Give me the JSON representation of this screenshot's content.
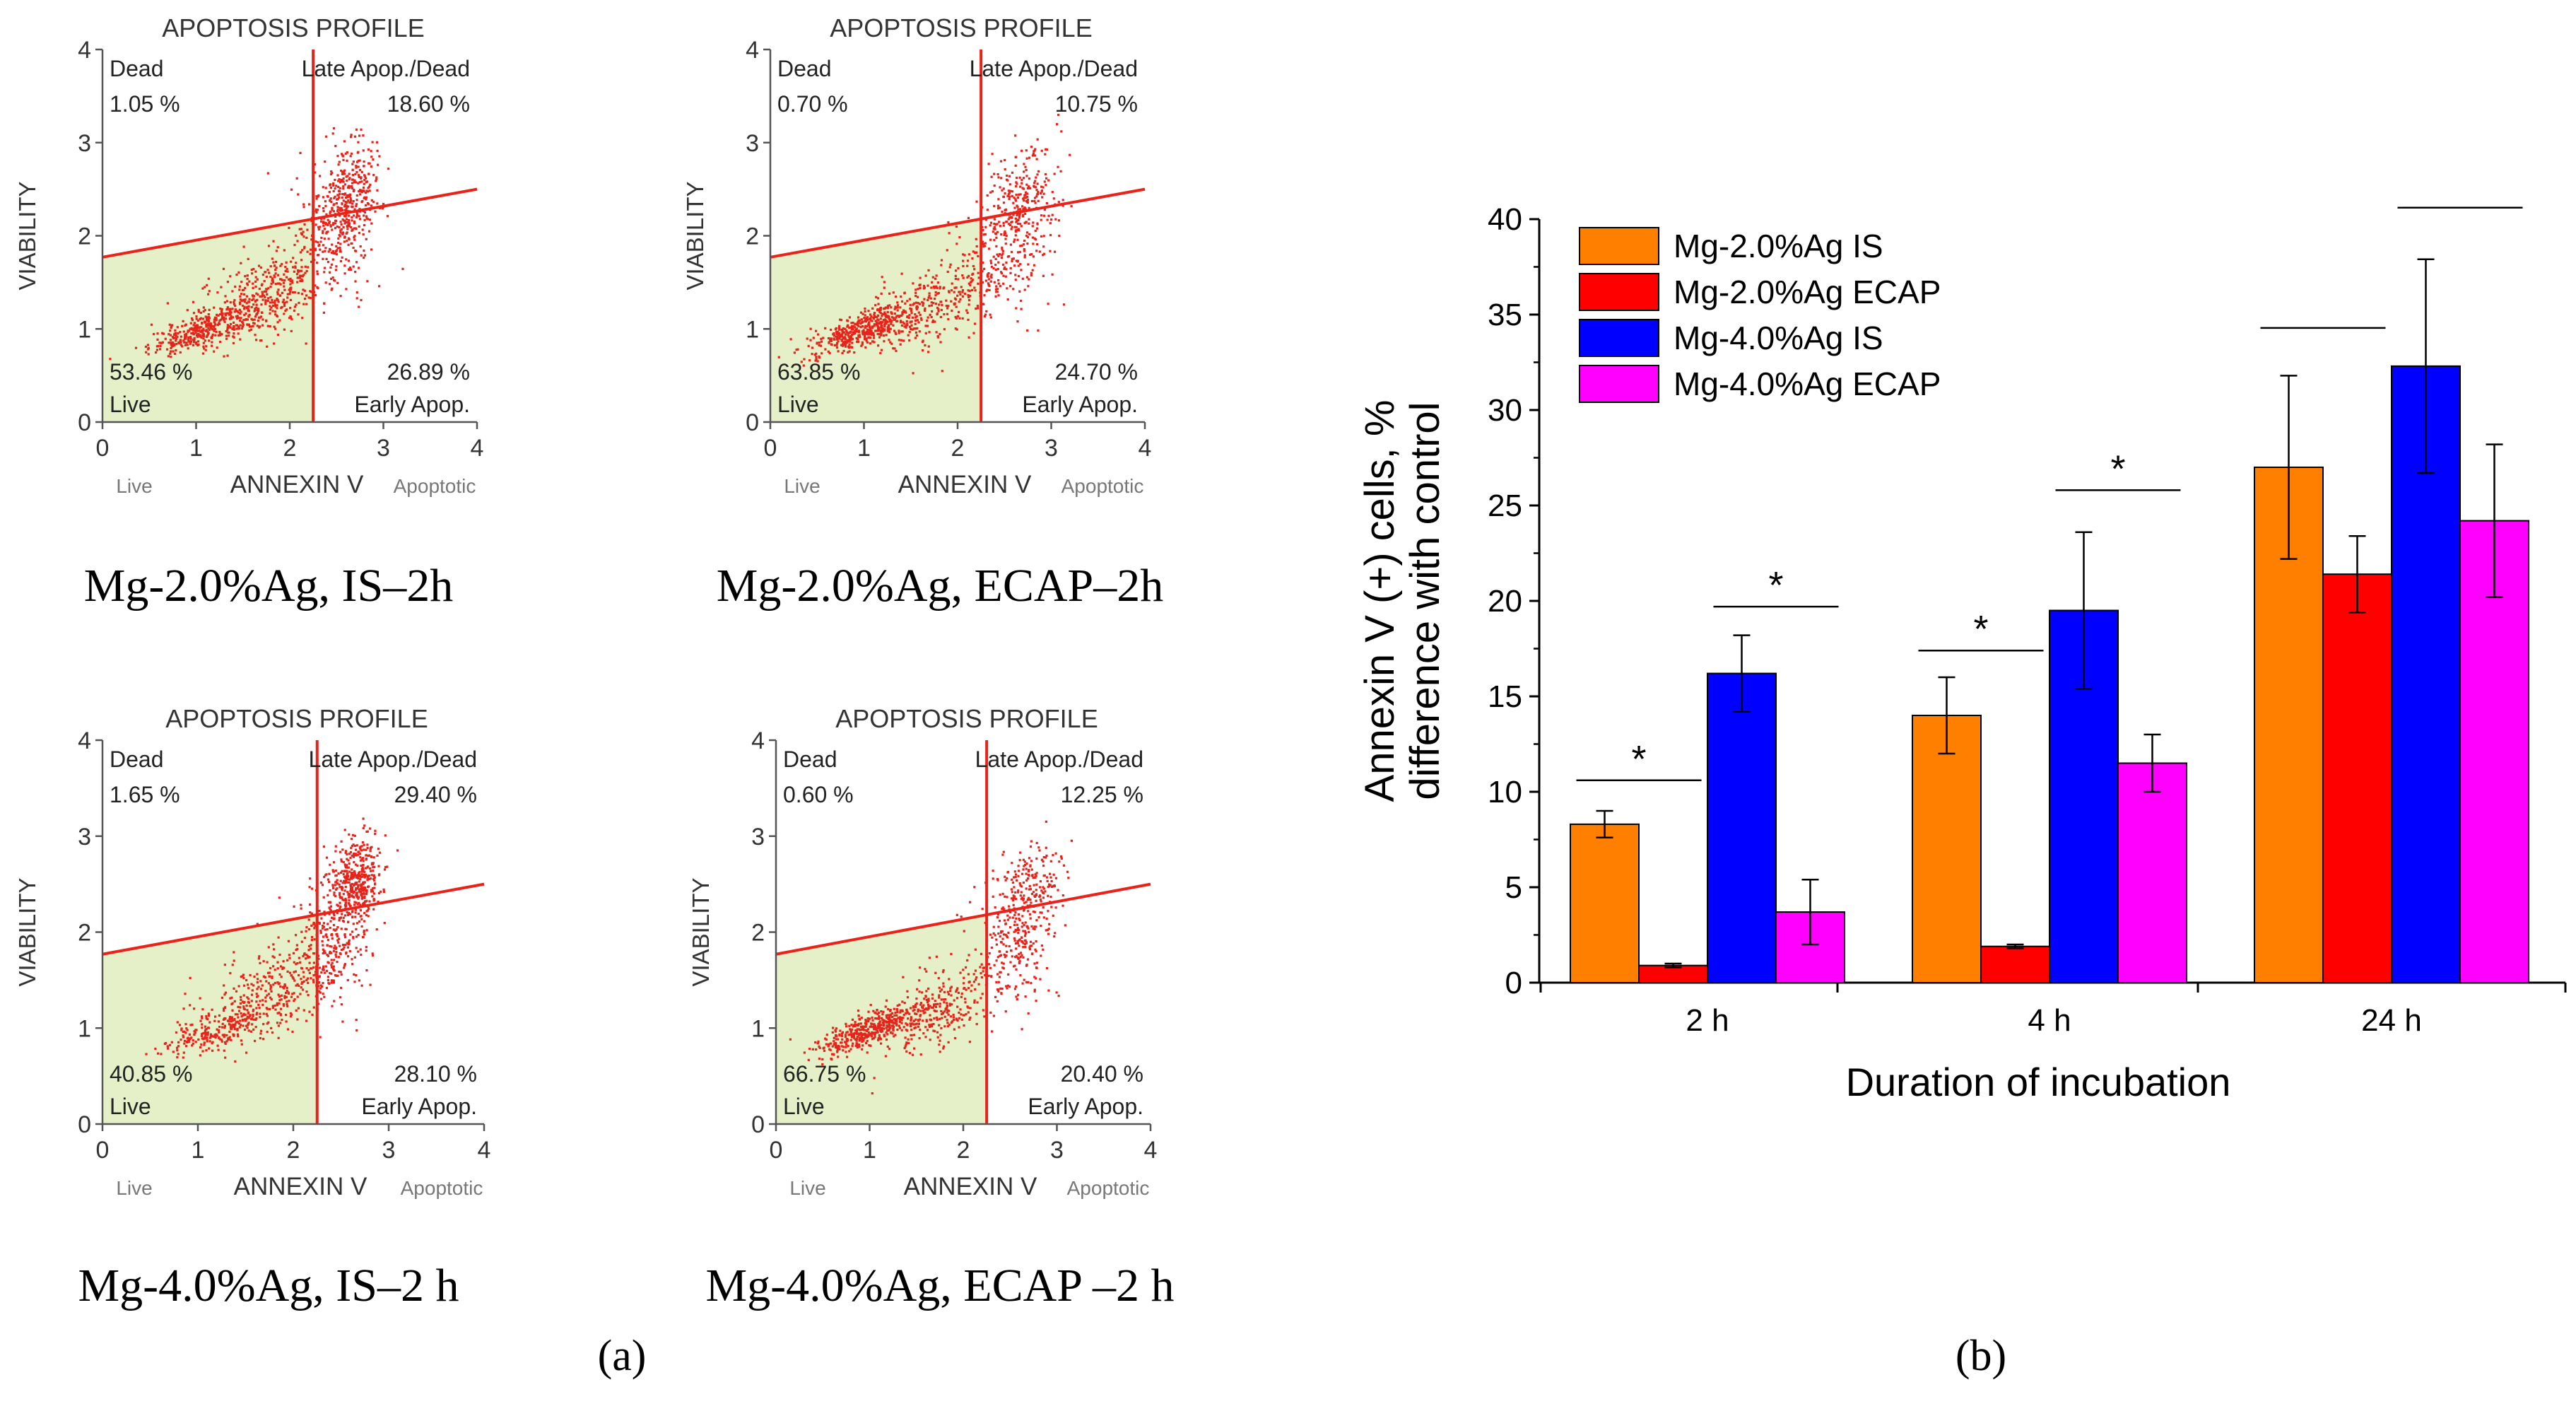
{
  "chart_data": [
    {
      "type": "scatter",
      "title": "APOPTOSIS PROFILE",
      "caption": "Mg-2.0%Ag, IS–2h",
      "xlabel": "ANNEXIN V",
      "ylabel": "VIABILITY",
      "x_side_labels": [
        "Live",
        "Apoptotic"
      ],
      "xlim": [
        0,
        4
      ],
      "ylim": [
        0,
        4
      ],
      "xticks": [
        "0",
        "1",
        "2",
        "3",
        "4"
      ],
      "yticks": [
        "0",
        "1",
        "2",
        "3",
        "4"
      ],
      "quadrants": {
        "dead": {
          "label": "Dead",
          "value": "1.05 %"
        },
        "late": {
          "label": "Late Apop./Dead",
          "value": "18.60 %"
        },
        "live": {
          "label": "Live",
          "value": "53.46 %"
        },
        "early": {
          "label": "Early Apop.",
          "value": "26.89 %"
        }
      },
      "vertical_gate_x": 2.25,
      "gate_line": {
        "y_at_x0": 1.77,
        "y_at_x4": 2.5
      },
      "point_color": "#e8231a",
      "live_fill": "#e6f0c8",
      "clusters": [
        {
          "cx": 1.05,
          "cy": 1.0,
          "sx": 0.28,
          "sy": 0.09,
          "n": 320
        },
        {
          "cx": 1.7,
          "cy": 1.35,
          "sx": 0.35,
          "sy": 0.22,
          "n": 380
        },
        {
          "cx": 2.45,
          "cy": 2.0,
          "sx": 0.22,
          "sy": 0.35,
          "n": 280
        },
        {
          "cx": 2.65,
          "cy": 2.5,
          "sx": 0.16,
          "sy": 0.28,
          "n": 260
        }
      ]
    },
    {
      "type": "scatter",
      "title": "APOPTOSIS PROFILE",
      "caption": "Mg-2.0%Ag, ECAP–2h",
      "xlabel": "ANNEXIN V",
      "ylabel": "VIABILITY",
      "x_side_labels": [
        "Live",
        "Apoptotic"
      ],
      "xlim": [
        0,
        4
      ],
      "ylim": [
        0,
        4
      ],
      "xticks": [
        "0",
        "1",
        "2",
        "3",
        "4"
      ],
      "yticks": [
        "0",
        "1",
        "2",
        "3",
        "4"
      ],
      "quadrants": {
        "dead": {
          "label": "Dead",
          "value": "0.70 %"
        },
        "late": {
          "label": "Late Apop./Dead",
          "value": "10.75 %"
        },
        "live": {
          "label": "Live",
          "value": "63.85 %"
        },
        "early": {
          "label": "Early Apop.",
          "value": "24.70 %"
        }
      },
      "vertical_gate_x": 2.25,
      "gate_line": {
        "y_at_x0": 1.77,
        "y_at_x4": 2.5
      },
      "point_color": "#e8231a",
      "live_fill": "#e6f0c8",
      "clusters": [
        {
          "cx": 0.95,
          "cy": 1.0,
          "sx": 0.28,
          "sy": 0.09,
          "n": 420
        },
        {
          "cx": 1.7,
          "cy": 1.25,
          "sx": 0.35,
          "sy": 0.2,
          "n": 300
        },
        {
          "cx": 2.5,
          "cy": 1.9,
          "sx": 0.25,
          "sy": 0.35,
          "n": 250
        },
        {
          "cx": 2.7,
          "cy": 2.4,
          "sx": 0.18,
          "sy": 0.3,
          "n": 200
        }
      ]
    },
    {
      "type": "scatter",
      "title": "APOPTOSIS PROFILE",
      "caption": "Mg-4.0%Ag, IS–2 h",
      "xlabel": "ANNEXIN V",
      "ylabel": "VIABILITY",
      "x_side_labels": [
        "Live",
        "Apoptotic"
      ],
      "xlim": [
        0,
        4
      ],
      "ylim": [
        0,
        4
      ],
      "xticks": [
        "0",
        "1",
        "2",
        "3",
        "4"
      ],
      "yticks": [
        "0",
        "1",
        "2",
        "3",
        "4"
      ],
      "quadrants": {
        "dead": {
          "label": "Dead",
          "value": "1.65 %"
        },
        "late": {
          "label": "Late Apop./Dead",
          "value": "29.40 %"
        },
        "live": {
          "label": "Live",
          "value": "40.85 %"
        },
        "early": {
          "label": "Early Apop.",
          "value": "28.10 %"
        }
      },
      "vertical_gate_x": 2.25,
      "gate_line": {
        "y_at_x0": 1.77,
        "y_at_x4": 2.5
      },
      "point_color": "#e8231a",
      "live_fill": "#e6f0c8",
      "clusters": [
        {
          "cx": 1.2,
          "cy": 1.0,
          "sx": 0.28,
          "sy": 0.1,
          "n": 220
        },
        {
          "cx": 1.8,
          "cy": 1.4,
          "sx": 0.35,
          "sy": 0.22,
          "n": 330
        },
        {
          "cx": 2.4,
          "cy": 1.95,
          "sx": 0.2,
          "sy": 0.35,
          "n": 300
        },
        {
          "cx": 2.65,
          "cy": 2.55,
          "sx": 0.13,
          "sy": 0.22,
          "n": 380
        }
      ]
    },
    {
      "type": "scatter",
      "title": "APOPTOSIS PROFILE",
      "caption": "Mg-4.0%Ag, ECAP –2 h",
      "xlabel": "ANNEXIN V",
      "ylabel": "VIABILITY",
      "x_side_labels": [
        "Live",
        "Apoptotic"
      ],
      "xlim": [
        0,
        4
      ],
      "ylim": [
        0,
        4
      ],
      "xticks": [
        "0",
        "1",
        "2",
        "3",
        "4"
      ],
      "yticks": [
        "0",
        "1",
        "2",
        "3",
        "4"
      ],
      "quadrants": {
        "dead": {
          "label": "Dead",
          "value": "0.60 %"
        },
        "late": {
          "label": "Late Apop./Dead",
          "value": "12.25 %"
        },
        "live": {
          "label": "Live",
          "value": "66.75 %"
        },
        "early": {
          "label": "Early Apop.",
          "value": "20.40 %"
        }
      },
      "vertical_gate_x": 2.25,
      "gate_line": {
        "y_at_x0": 1.77,
        "y_at_x4": 2.5
      },
      "point_color": "#e8231a",
      "live_fill": "#e6f0c8",
      "clusters": [
        {
          "cx": 1.0,
          "cy": 1.0,
          "sx": 0.3,
          "sy": 0.09,
          "n": 440
        },
        {
          "cx": 1.7,
          "cy": 1.2,
          "sx": 0.35,
          "sy": 0.2,
          "n": 260
        },
        {
          "cx": 2.5,
          "cy": 1.9,
          "sx": 0.25,
          "sy": 0.35,
          "n": 230
        },
        {
          "cx": 2.7,
          "cy": 2.4,
          "sx": 0.18,
          "sy": 0.3,
          "n": 210
        }
      ]
    },
    {
      "type": "bar",
      "categories": [
        "2 h",
        "4 h",
        "24 h"
      ],
      "series": [
        {
          "name": "Mg-2.0%Ag IS",
          "color": "#ff8000",
          "values": [
            8.3,
            14.0,
            27.0
          ],
          "errors": [
            0.7,
            2.0,
            4.8
          ]
        },
        {
          "name": "Mg-2.0%Ag ECAP",
          "color": "#ff0000",
          "values": [
            0.9,
            1.9,
            21.4
          ],
          "errors": [
            0.1,
            0.1,
            2.0
          ]
        },
        {
          "name": "Mg-4.0%Ag IS",
          "color": "#0000ff",
          "values": [
            16.2,
            19.5,
            32.3
          ],
          "errors": [
            2.0,
            4.1,
            5.6
          ]
        },
        {
          "name": "Mg-4.0%Ag ECAP",
          "color": "#ff00ff",
          "values": [
            3.7,
            11.5,
            24.2
          ],
          "errors": [
            1.7,
            1.5,
            4.0
          ]
        }
      ],
      "significance": [
        {
          "category": 0,
          "from": 0,
          "to": 1,
          "y": 10.6,
          "mark": "*"
        },
        {
          "category": 0,
          "from": 2,
          "to": 3,
          "y": 19.7,
          "mark": "*"
        },
        {
          "category": 1,
          "from": 0,
          "to": 1,
          "y": 17.4,
          "mark": "*"
        },
        {
          "category": 1,
          "from": 2,
          "to": 3,
          "y": 25.8,
          "mark": "*"
        },
        {
          "category": 2,
          "from": 0,
          "to": 1,
          "y": 34.3,
          "mark": ""
        },
        {
          "category": 2,
          "from": 2,
          "to": 3,
          "y": 40.6,
          "mark": ""
        }
      ],
      "title": "",
      "xlabel": "Duration of incubation",
      "ylabel_lines": [
        "Annexin V (+) cells, %",
        "difference with control"
      ],
      "ylim": [
        0,
        40
      ],
      "yticks": [
        "0",
        "5",
        "10",
        "15",
        "20",
        "25",
        "30",
        "35",
        "40"
      ],
      "legend_position": "top-left"
    }
  ],
  "panel_labels": {
    "a": "(a)",
    "b": "(b)"
  }
}
